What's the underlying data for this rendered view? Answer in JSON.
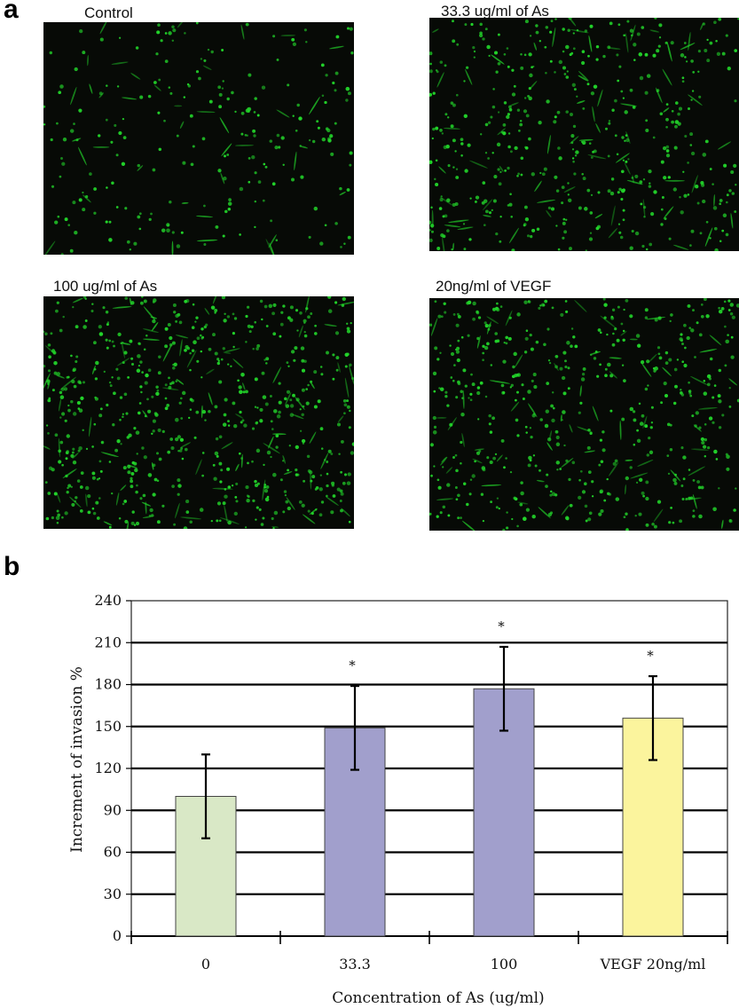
{
  "panel_a": {
    "letter": "a",
    "images": [
      {
        "label": "Control",
        "cell_count": 260,
        "seed": 11
      },
      {
        "label": "33.3 ug/ml of As",
        "cell_count": 520,
        "seed": 23
      },
      {
        "label": "100 ug/ml of As",
        "cell_count": 700,
        "seed": 37
      },
      {
        "label": "20ng/ml of VEGF",
        "cell_count": 560,
        "seed": 53
      }
    ],
    "cell_color": "#22d42a",
    "background_color": "#070a06"
  },
  "panel_b": {
    "letter": "b"
  },
  "chart_data": {
    "type": "bar",
    "categories": [
      "0",
      "33.3",
      "100",
      "VEGF 20ng/ml"
    ],
    "values": [
      100,
      149,
      177,
      156
    ],
    "errors": [
      30,
      30,
      30,
      30
    ],
    "significance": [
      "",
      "*",
      "*",
      "*"
    ],
    "colors": [
      "#d9e8c6",
      "#a19fcc",
      "#a19fcc",
      "#fbf49d"
    ],
    "title": "",
    "xlabel": "Concentration of As (ug/ml)",
    "ylabel": "Increment of invasion %",
    "ylim": [
      0,
      240
    ],
    "yticks": [
      0,
      30,
      60,
      90,
      120,
      150,
      180,
      210,
      240
    ],
    "grid": true
  }
}
